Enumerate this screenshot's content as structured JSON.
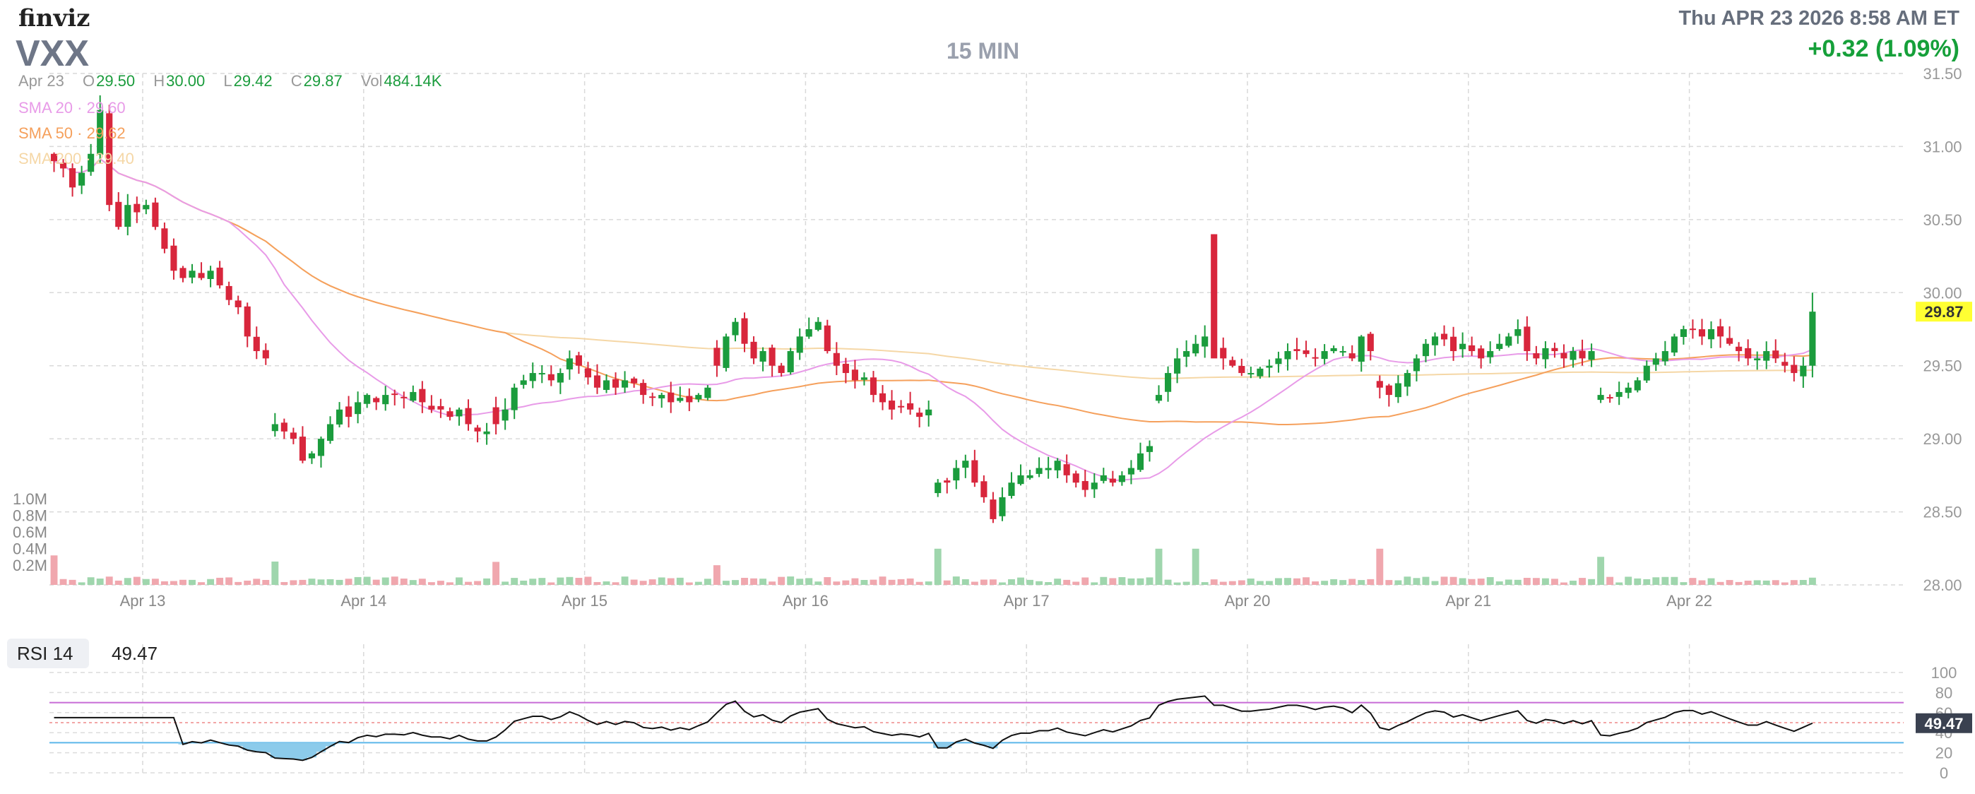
{
  "header": {
    "logo": "finviz",
    "ticker": "VXX",
    "interval": "15 MIN",
    "datetime": "Thu APR 23 2026 8:58 AM ET",
    "change": "+0.32 (1.09%)"
  },
  "ohlc": {
    "date": "Apr 23",
    "open_label": "O",
    "open": "29.50",
    "high_label": "H",
    "high": "30.00",
    "low_label": "L",
    "low": "29.42",
    "close_label": "C",
    "close": "29.87",
    "vol_label": "Vol",
    "vol": "484.14K"
  },
  "indicators": {
    "sma20": {
      "label": "SMA 20 · 29.60",
      "color": "#e89be8"
    },
    "sma50": {
      "label": "SMA 50 · 29.62",
      "color": "#f5a05c"
    },
    "sma200": {
      "label": "SMA 200 · 29.40",
      "color": "#f5d7a6"
    }
  },
  "colors": {
    "up": "#1b9c3d",
    "down": "#d8263c",
    "up_vol": "#9fd6ad",
    "down_vol": "#f0a7ae",
    "price_badge": "#ffff33"
  },
  "rsi": {
    "label": "RSI 14",
    "value": "49.47",
    "overbought": 70,
    "oversold": 30
  },
  "chart_data": {
    "type": "candlestick",
    "title": "",
    "x_tick_labels": [
      "Apr 13",
      "Apr 14",
      "Apr 15",
      "Apr 16",
      "Apr 17",
      "Apr 20",
      "Apr 21",
      "Apr 22"
    ],
    "y_ticks": [
      "28.00",
      "28.50",
      "29.00",
      "29.50",
      "30.00",
      "30.50",
      "31.00",
      "31.50"
    ],
    "ylim": [
      28.0,
      31.5
    ],
    "last_price": "29.87",
    "volume_ticks": [
      "1.0M",
      "0.8M",
      "0.6M",
      "0.4M",
      "0.2M"
    ],
    "volume_max": 1000000,
    "rsi_ticks": [
      "100",
      "80",
      "60",
      "40",
      "20",
      "0"
    ],
    "candles_per_day": 24,
    "grid": true,
    "daily_anchors": [
      [
        30.9,
        30.85,
        30.72,
        30.82,
        30.95,
        31.25,
        30.6,
        30.45,
        30.6,
        30.55,
        30.6,
        30.45,
        30.3,
        30.15,
        30.1,
        30.15,
        30.1,
        30.15,
        30.05,
        29.95,
        29.9,
        29.7,
        29.6,
        29.55
      ],
      [
        29.1,
        29.05,
        29.0,
        28.85,
        28.9,
        29.0,
        29.1,
        29.2,
        29.15,
        29.25,
        29.3,
        29.25,
        29.3,
        29.3,
        29.28,
        29.32,
        29.25,
        29.2,
        29.2,
        29.15,
        29.2,
        29.1,
        29.05,
        29.05
      ],
      [
        29.1,
        29.2,
        29.35,
        29.4,
        29.45,
        29.45,
        29.4,
        29.45,
        29.55,
        29.5,
        29.42,
        29.35,
        29.4,
        29.35,
        29.4,
        29.38,
        29.3,
        29.28,
        29.3,
        29.25,
        29.28,
        29.25,
        29.3,
        29.35
      ],
      [
        29.5,
        29.7,
        29.8,
        29.65,
        29.55,
        29.6,
        29.5,
        29.45,
        29.6,
        29.7,
        29.75,
        29.8,
        29.6,
        29.5,
        29.45,
        29.4,
        29.42,
        29.3,
        29.25,
        29.2,
        29.22,
        29.2,
        29.15,
        29.2
      ],
      [
        28.7,
        28.7,
        28.8,
        28.85,
        28.7,
        28.6,
        28.45,
        28.6,
        28.7,
        28.75,
        28.75,
        28.8,
        28.8,
        28.85,
        28.75,
        28.7,
        28.65,
        28.7,
        28.75,
        28.7,
        28.75,
        28.8,
        28.9,
        28.95
      ],
      [
        29.3,
        29.45,
        29.55,
        29.6,
        29.65,
        29.7,
        29.6,
        29.55,
        29.5,
        29.45,
        29.45,
        29.48,
        29.5,
        29.55,
        29.6,
        29.6,
        29.58,
        29.55,
        29.6,
        29.62,
        29.6,
        29.55,
        29.7,
        29.6
      ],
      [
        29.35,
        29.3,
        29.38,
        29.45,
        29.55,
        29.65,
        29.7,
        29.68,
        29.6,
        29.65,
        29.6,
        29.55,
        29.6,
        29.65,
        29.7,
        29.75,
        29.6,
        29.55,
        29.62,
        29.6,
        29.55,
        29.6,
        29.55,
        29.6
      ],
      [
        29.3,
        29.28,
        29.32,
        29.35,
        29.4,
        29.5,
        29.55,
        29.6,
        29.7,
        29.75,
        29.75,
        29.7,
        29.75,
        29.7,
        29.65,
        29.6,
        29.55,
        29.55,
        29.6,
        29.55,
        29.5,
        29.45,
        29.5,
        29.87
      ]
    ]
  }
}
